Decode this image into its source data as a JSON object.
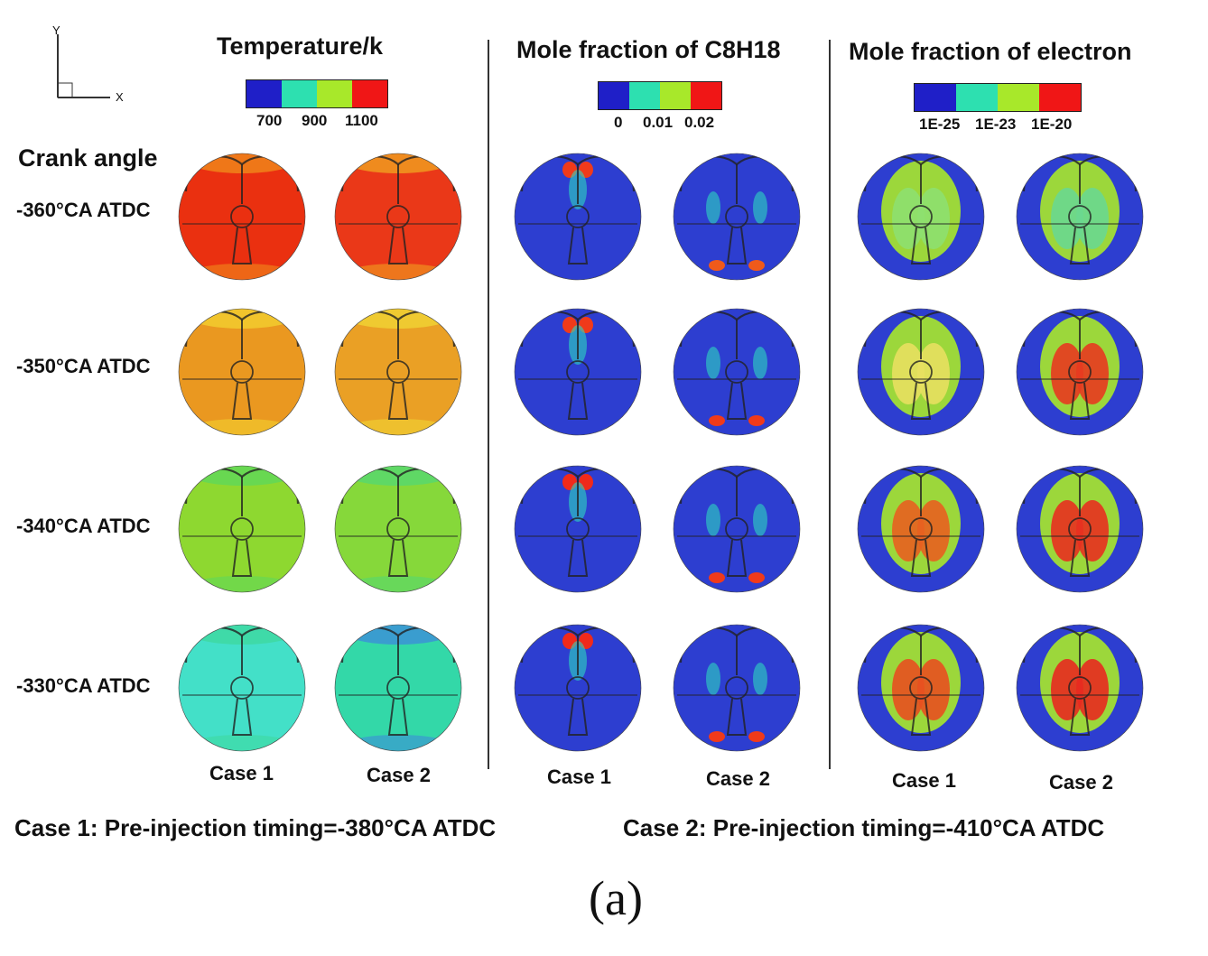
{
  "axes_triad": {
    "x_label": "X",
    "y_label": "Y"
  },
  "row_header": "Crank angle",
  "rows": [
    "-360°CA ATDC",
    "-350°CA ATDC",
    "-340°CA ATDC",
    "-330°CA ATDC"
  ],
  "columns": [
    {
      "title": "Temperature/k",
      "colorbar": [
        "#1f1fc8",
        "#2de0b0",
        "#a8e82a",
        "#f01616"
      ],
      "ticks": [
        "700",
        "900",
        "1100"
      ],
      "cases": [
        "Case 1",
        "Case 2"
      ],
      "maps": [
        [
          {
            "base": "#ea3010",
            "accent": "#f08a1a"
          },
          {
            "base": "#ea3818",
            "accent": "#f0a020"
          }
        ],
        [
          {
            "base": "#ea9820",
            "accent": "#f2d030"
          },
          {
            "base": "#eaa025",
            "accent": "#f0d535"
          }
        ],
        [
          {
            "base": "#8ed830",
            "accent": "#5fd85a"
          },
          {
            "base": "#86d83a",
            "accent": "#55d870"
          }
        ],
        [
          {
            "base": "#43e0c8",
            "accent": "#3fd8a0"
          },
          {
            "base": "#33d8a8",
            "accent": "#3c8ed8"
          }
        ]
      ]
    },
    {
      "title": "Mole fraction of C8H18",
      "colorbar": [
        "#1f1fc8",
        "#2de0b0",
        "#a8e82a",
        "#f01616"
      ],
      "ticks": [
        "0",
        "0.01",
        "0.02"
      ],
      "cases": [
        "Case 1",
        "Case 2"
      ],
      "maps": [
        [
          {
            "base": "#2d3ed0",
            "accent": "#f03a1a"
          },
          {
            "base": "#2d3ed0",
            "accent": "#f05a1a"
          }
        ],
        [
          {
            "base": "#2d3ed0",
            "accent": "#f03a1a"
          },
          {
            "base": "#2d3ed0",
            "accent": "#f03a1a"
          }
        ],
        [
          {
            "base": "#2d3ed0",
            "accent": "#f02a1a"
          },
          {
            "base": "#2d3ed0",
            "accent": "#f03a1a"
          }
        ],
        [
          {
            "base": "#2d3ed0",
            "accent": "#f02a1a"
          },
          {
            "base": "#2d3ed0",
            "accent": "#f03a1a"
          }
        ]
      ]
    },
    {
      "title": "Mole fraction of electron",
      "colorbar": [
        "#1f1fc8",
        "#2de0b0",
        "#a8e82a",
        "#f01616"
      ],
      "ticks": [
        "1E-25",
        "1E-23",
        "1E-20"
      ],
      "cases": [
        "Case 1",
        "Case 2"
      ],
      "maps": [
        [
          {
            "base": "#2d3ed0",
            "accent": "#8ee070"
          },
          {
            "base": "#2d3ed0",
            "accent": "#6ad890"
          }
        ],
        [
          {
            "base": "#2d3ed0",
            "accent": "#e8e060"
          },
          {
            "base": "#2d3ed0",
            "accent": "#e83a20"
          }
        ],
        [
          {
            "base": "#2d3ed0",
            "accent": "#e86020"
          },
          {
            "base": "#2d3ed0",
            "accent": "#e83020"
          }
        ],
        [
          {
            "base": "#2d3ed0",
            "accent": "#e85020"
          },
          {
            "base": "#2d3ed0",
            "accent": "#e82a20"
          }
        ]
      ]
    }
  ],
  "footnotes": {
    "case1": "Case 1: Pre-injection timing=-380°CA ATDC",
    "case2": "Case 2: Pre-injection timing=-410°CA ATDC"
  },
  "panel_label": "(a)"
}
